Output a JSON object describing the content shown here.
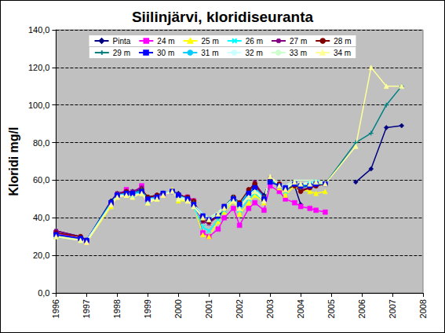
{
  "chart_data": {
    "type": "line",
    "title": "Siilinjärvi, kloridiseuranta",
    "y_label": "Kloridi mg/l",
    "x": [
      1996.0,
      1996.8,
      1997.0,
      1997.8,
      1998.0,
      1998.3,
      1998.5,
      1998.8,
      1999.0,
      1999.3,
      1999.5,
      1999.8,
      2000.0,
      2000.3,
      2000.5,
      2000.8,
      2001.0,
      2001.3,
      2001.5,
      2001.8,
      2002.0,
      2002.3,
      2002.5,
      2002.8,
      2003.0,
      2003.3,
      2003.5,
      2003.8,
      2004.0,
      2004.3,
      2004.5,
      2004.8,
      2005.8,
      2006.3,
      2006.8,
      2007.3
    ],
    "xlim": [
      1996,
      2008
    ],
    "xticks": [
      1996,
      1997,
      1998,
      1999,
      2000,
      2001,
      2002,
      2003,
      2004,
      2005,
      2006,
      2007,
      2008
    ],
    "ylim": [
      0,
      140
    ],
    "yticks": [
      {
        "value": 0,
        "label": "0,0"
      },
      {
        "value": 20,
        "label": "20,0"
      },
      {
        "value": 40,
        "label": "40,0"
      },
      {
        "value": 60,
        "label": "60,0"
      },
      {
        "value": 80,
        "label": "80,0"
      },
      {
        "value": 100,
        "label": "100,0"
      },
      {
        "value": 120,
        "label": "120,0"
      },
      {
        "value": 140,
        "label": "140,0"
      }
    ],
    "grid": true,
    "legend": "top",
    "series": [
      {
        "name": "Pinta",
        "color": "#000080",
        "marker": "diamond",
        "values": [
          33,
          30,
          28,
          49,
          53,
          54,
          54,
          55,
          51,
          52,
          53,
          54,
          53,
          50,
          48,
          41,
          39,
          40,
          44,
          51,
          47,
          53,
          58,
          52,
          60,
          58,
          56,
          57,
          47,
          null,
          null,
          null,
          59,
          66,
          88,
          89
        ]
      },
      {
        "name": "24 m",
        "color": "#ff00ff",
        "marker": "square",
        "values": [
          32,
          29,
          27,
          47,
          52,
          55,
          53,
          57,
          49,
          51,
          52,
          54,
          52,
          51,
          49,
          32,
          30,
          34,
          40,
          45,
          36,
          45,
          48,
          44,
          57,
          54,
          50,
          48,
          46,
          45,
          44,
          43,
          null,
          null,
          null,
          null
        ]
      },
      {
        "name": "25 m",
        "color": "#ffff00",
        "marker": "triangle",
        "values": [
          30,
          28,
          27,
          46,
          51,
          52,
          51,
          53,
          48,
          50,
          52,
          55,
          49,
          49,
          47,
          31,
          30,
          38,
          43,
          49,
          42,
          48,
          52,
          48,
          61,
          56,
          52,
          57,
          55,
          54,
          53,
          54,
          null,
          null,
          null,
          null
        ]
      },
      {
        "name": "26 m",
        "color": "#00ffff",
        "marker": "x",
        "values": [
          30,
          28,
          28,
          47,
          52,
          53,
          52,
          54,
          49,
          51,
          53,
          54,
          50,
          50,
          46,
          35,
          33,
          39,
          44,
          50,
          44,
          50,
          53,
          49,
          60,
          57,
          54,
          58,
          57,
          58,
          59,
          58,
          null,
          null,
          null,
          null
        ]
      },
      {
        "name": "27 m",
        "color": "#800080",
        "marker": "star",
        "values": [
          33,
          30,
          28,
          48,
          53,
          54,
          54,
          56,
          50,
          52,
          53,
          54,
          52,
          51,
          48,
          38,
          37,
          41,
          45,
          51,
          47,
          54,
          59,
          51,
          61,
          58,
          55,
          58,
          55,
          56,
          57,
          58,
          null,
          null,
          null,
          null
        ]
      },
      {
        "name": "28 m",
        "color": "#800000",
        "marker": "circle",
        "values": [
          32,
          30,
          28,
          48,
          52,
          54,
          53,
          55,
          51,
          52,
          53,
          54,
          52,
          51,
          49,
          39,
          38,
          41,
          46,
          51,
          48,
          55,
          58,
          50,
          60,
          58,
          55,
          57,
          54,
          56,
          57,
          58,
          null,
          null,
          null,
          null
        ]
      },
      {
        "name": "29 m",
        "color": "#008080",
        "marker": "plus",
        "values": [
          31,
          29,
          28,
          48,
          52,
          53,
          53,
          55,
          50,
          51,
          53,
          54,
          52,
          50,
          48,
          40,
          39,
          42,
          46,
          51,
          47,
          53,
          56,
          51,
          60,
          57,
          55,
          58,
          56,
          57,
          58,
          58,
          80,
          85,
          100,
          110
        ]
      },
      {
        "name": "30 m",
        "color": "#0000ff",
        "marker": "dash",
        "values": [
          31,
          29,
          28,
          48,
          52,
          53,
          53,
          54,
          50,
          51,
          53,
          54,
          52,
          50,
          47,
          41,
          39,
          41,
          46,
          50,
          47,
          53,
          56,
          50,
          59,
          57,
          56,
          58,
          57,
          57,
          58,
          58,
          null,
          null,
          null,
          null
        ]
      },
      {
        "name": "31 m",
        "color": "#00ccff",
        "marker": "none",
        "values": [
          30,
          28,
          28,
          48,
          52,
          53,
          53,
          54,
          50,
          51,
          53,
          54,
          52,
          50,
          47,
          42,
          40,
          42,
          45,
          51,
          47,
          54,
          56,
          51,
          60,
          58,
          56,
          58,
          57,
          58,
          58,
          58,
          null,
          null,
          null,
          null
        ]
      },
      {
        "name": "32 m",
        "color": "#ccffff",
        "marker": "none",
        "values": [
          30,
          28,
          28,
          47,
          52,
          52,
          52,
          53,
          50,
          50,
          53,
          54,
          51,
          50,
          47,
          42,
          40,
          43,
          46,
          50,
          46,
          52,
          55,
          50,
          61,
          58,
          56,
          59,
          58,
          59,
          59,
          58,
          null,
          null,
          null,
          null
        ]
      },
      {
        "name": "33 m",
        "color": "#ccffcc",
        "marker": "none",
        "values": [
          30,
          28,
          27,
          47,
          51,
          52,
          52,
          53,
          49,
          50,
          53,
          53,
          51,
          49,
          46,
          41,
          40,
          43,
          46,
          50,
          46,
          52,
          55,
          50,
          62,
          58,
          57,
          60,
          60,
          60,
          60,
          59,
          null,
          null,
          null,
          null
        ]
      },
      {
        "name": "34 m",
        "color": "#ffff99",
        "marker": "triangle",
        "values": [
          30,
          28,
          27,
          47,
          51,
          52,
          51,
          53,
          48,
          50,
          52,
          54,
          50,
          49,
          46,
          40,
          39,
          42,
          45,
          49,
          45,
          51,
          54,
          49,
          62,
          57,
          55,
          59,
          58,
          58,
          59,
          58,
          78,
          120,
          110,
          110
        ]
      }
    ]
  }
}
